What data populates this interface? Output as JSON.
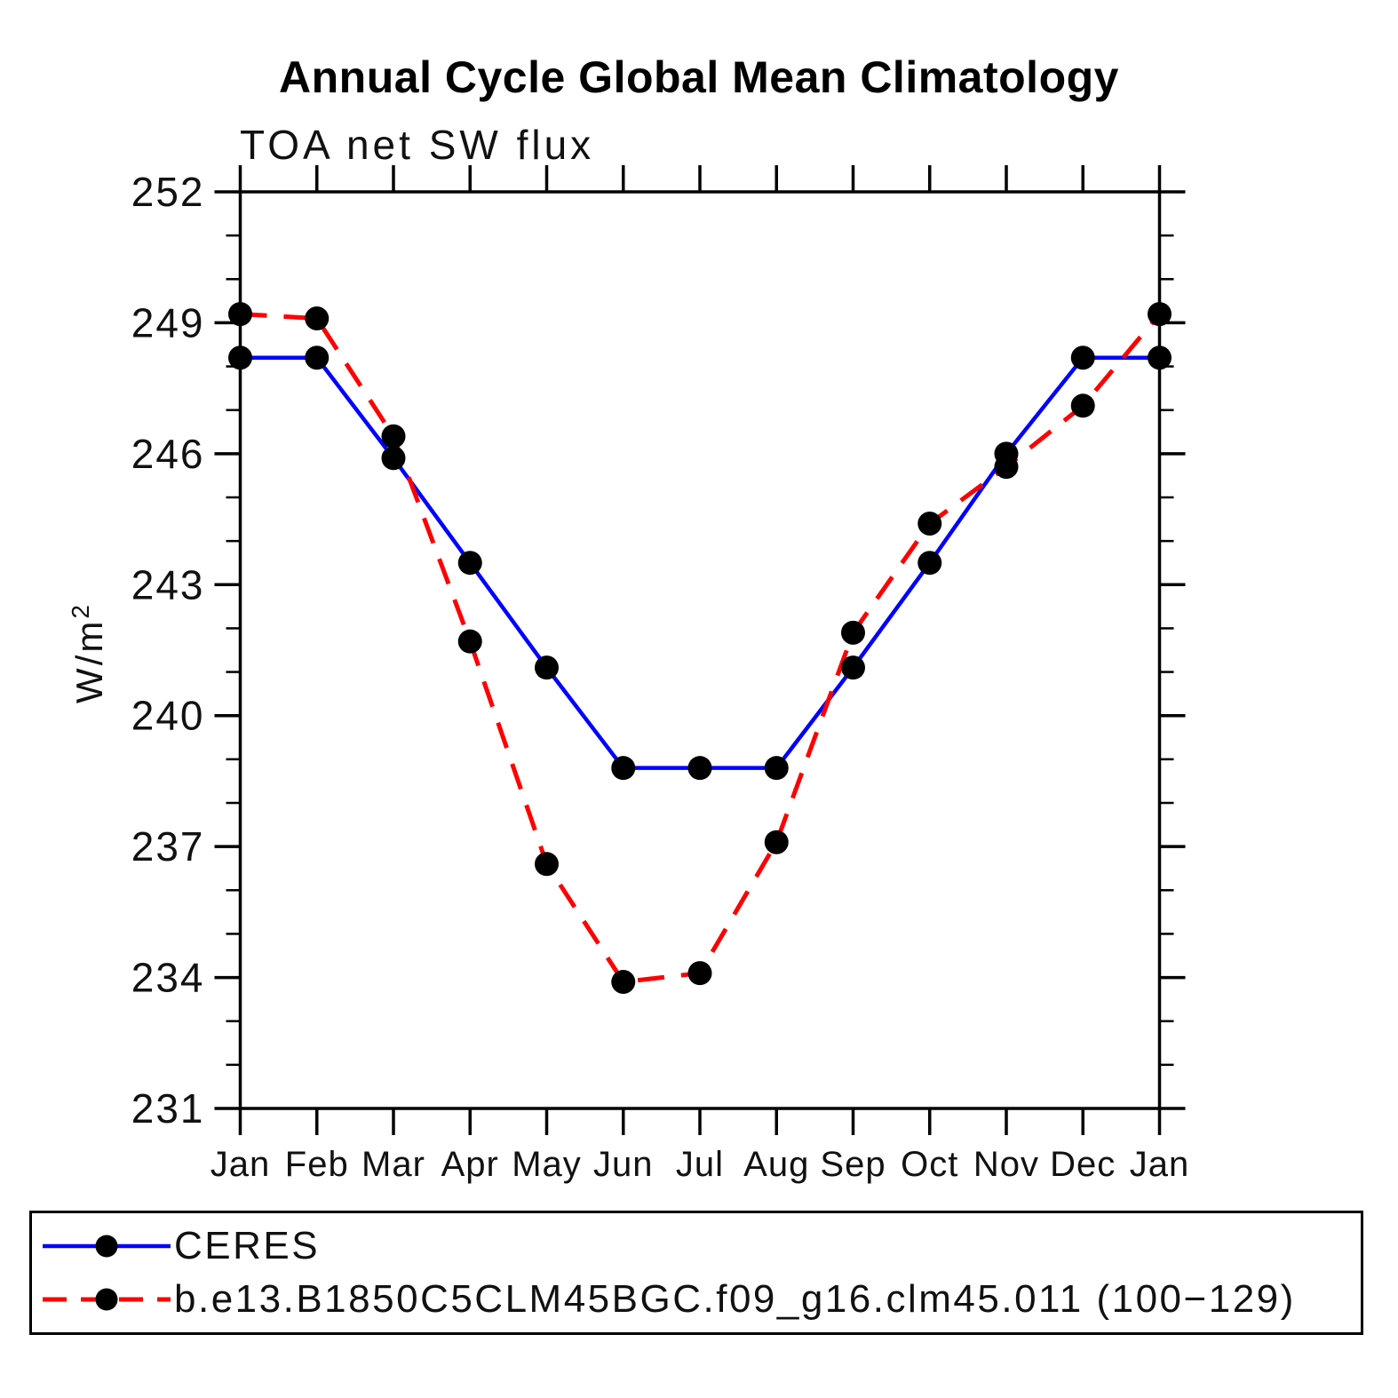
{
  "chart_data": {
    "type": "line",
    "title": "Annual Cycle Global Mean Climatology",
    "subtitle": "TOA net SW flux",
    "ylabel": "W/m²",
    "ylabel_base": "W/m",
    "ylabel_sup": "2",
    "xlabel": "",
    "x_labels": [
      "Jan",
      "Feb",
      "Mar",
      "Apr",
      "May",
      "Jun",
      "Jul",
      "Aug",
      "Sep",
      "Oct",
      "Nov",
      "Dec",
      "Jan"
    ],
    "ylim": [
      231,
      252
    ],
    "y_ticks": [
      252,
      249,
      246,
      243,
      240,
      237,
      234,
      231
    ],
    "y_minor_step": 1,
    "grid": false,
    "legend_position": "bottom",
    "marker": "filled-circle",
    "marker_color": "#000000",
    "series": [
      {
        "id": "ceres",
        "name": "CERES",
        "color": "#0000ff",
        "line_style": "solid",
        "values": [
          248.2,
          248.2,
          245.9,
          243.5,
          241.1,
          238.8,
          238.8,
          238.8,
          241.1,
          243.5,
          246.0,
          248.2,
          248.2
        ]
      },
      {
        "id": "model",
        "name": "b.e13.B1850C5CLM45BGC.f09_g16.clm45.011 (100−129)",
        "color": "#ff0000",
        "line_style": "dashed",
        "values": [
          249.2,
          249.1,
          246.4,
          241.7,
          236.6,
          233.9,
          234.1,
          237.1,
          241.9,
          244.4,
          245.7,
          247.1,
          249.2
        ]
      }
    ]
  }
}
